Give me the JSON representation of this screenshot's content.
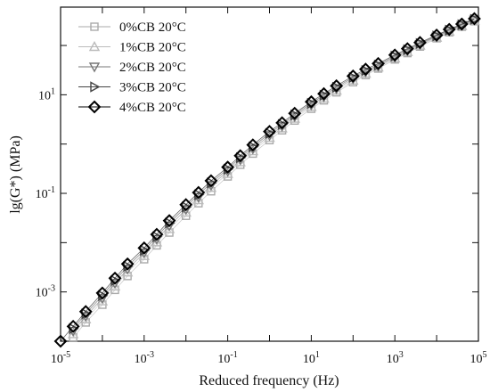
{
  "chart_data": {
    "type": "scatter",
    "title": "",
    "xlabel": "Reduced frequency (Hz)",
    "ylabel": "lg(G*) (MPa)",
    "x_scale": "log",
    "y_scale": "log",
    "xlim": [
      1e-05,
      100000
    ],
    "ylim": [
      0.0001,
      600
    ],
    "x_ticks": [
      {
        "value": 1e-05,
        "base": "10",
        "exp": "-5"
      },
      {
        "value": 0.001,
        "base": "10",
        "exp": "-3"
      },
      {
        "value": 0.1,
        "base": "10",
        "exp": "-1"
      },
      {
        "value": 10,
        "base": "10",
        "exp": "1"
      },
      {
        "value": 1000,
        "base": "10",
        "exp": "3"
      },
      {
        "value": 100000,
        "base": "10",
        "exp": "5"
      }
    ],
    "y_ticks": [
      {
        "value": 0.001,
        "base": "10",
        "exp": "-3"
      },
      {
        "value": 0.1,
        "base": "10",
        "exp": "-1"
      },
      {
        "value": 10,
        "base": "10",
        "exp": "1"
      }
    ],
    "grid": false,
    "legend_position": "top-left",
    "series": [
      {
        "name": "0%CB 20°C",
        "marker": "square",
        "color": "#aaaaaa",
        "x": [
          2e-05,
          4e-05,
          0.0001,
          0.0002,
          0.0004,
          0.001,
          0.002,
          0.004,
          0.01,
          0.02,
          0.04,
          0.1,
          0.2,
          0.4,
          1,
          2,
          4,
          10,
          20,
          40,
          100,
          200,
          400,
          1000,
          2000,
          4000,
          10000,
          20000,
          40000,
          80000
        ],
        "y": [
          0.00012,
          0.00024,
          0.00055,
          0.0011,
          0.0021,
          0.0046,
          0.0088,
          0.016,
          0.035,
          0.063,
          0.11,
          0.22,
          0.38,
          0.64,
          1.2,
          1.9,
          3.0,
          5.2,
          7.7,
          11.2,
          18,
          25,
          34,
          52,
          70,
          95,
          140,
          185,
          240,
          310
        ]
      },
      {
        "name": "1%CB 20°C",
        "marker": "triangle-up",
        "color": "#bbbbbb",
        "x": [
          2e-05,
          4e-05,
          0.0001,
          0.0002,
          0.0004,
          0.001,
          0.002,
          0.004,
          0.01,
          0.02,
          0.04,
          0.1,
          0.2,
          0.4,
          1,
          2,
          4,
          10,
          20,
          40,
          100,
          200,
          400,
          1000,
          2000,
          4000,
          10000,
          20000,
          40000,
          80000
        ],
        "y": [
          0.00014,
          0.00028,
          0.00065,
          0.0013,
          0.0025,
          0.0054,
          0.0102,
          0.019,
          0.041,
          0.073,
          0.13,
          0.25,
          0.43,
          0.72,
          1.35,
          2.1,
          3.3,
          5.7,
          8.4,
          12.2,
          19.5,
          27,
          36,
          55,
          74,
          100,
          145,
          192,
          250,
          320
        ]
      },
      {
        "name": "2%CB 20°C",
        "marker": "triangle-down",
        "color": "#777777",
        "x": [
          2e-05,
          4e-05,
          0.0001,
          0.0002,
          0.0004,
          0.001,
          0.002,
          0.004,
          0.01,
          0.02,
          0.04,
          0.1,
          0.2,
          0.4,
          1,
          2,
          4,
          10,
          20,
          40,
          100,
          200,
          400,
          1000,
          2000,
          4000,
          10000,
          20000,
          40000,
          80000
        ],
        "y": [
          0.00016,
          0.00032,
          0.00074,
          0.0015,
          0.0029,
          0.0062,
          0.0117,
          0.022,
          0.047,
          0.083,
          0.145,
          0.28,
          0.48,
          0.8,
          1.5,
          2.3,
          3.6,
          6.2,
          9.1,
          13.2,
          21,
          29,
          38,
          58,
          78,
          105,
          150,
          198,
          258,
          330
        ]
      },
      {
        "name": "3%CB 20°C",
        "marker": "triangle-right",
        "color": "#444444",
        "x": [
          2e-05,
          4e-05,
          0.0001,
          0.0002,
          0.0004,
          0.001,
          0.002,
          0.004,
          0.01,
          0.02,
          0.04,
          0.1,
          0.2,
          0.4,
          1,
          2,
          4,
          10,
          20,
          40,
          100,
          200,
          400,
          1000,
          2000,
          4000,
          10000,
          20000,
          40000,
          80000
        ],
        "y": [
          0.00018,
          0.00036,
          0.00084,
          0.0017,
          0.0033,
          0.007,
          0.0132,
          0.025,
          0.053,
          0.094,
          0.163,
          0.31,
          0.53,
          0.88,
          1.65,
          2.5,
          3.9,
          6.7,
          9.8,
          14.2,
          22.5,
          31,
          40,
          61,
          82,
          110,
          156,
          205,
          265,
          340
        ]
      },
      {
        "name": "4%CB 20°C",
        "marker": "diamond",
        "color": "#000000",
        "x": [
          1e-05,
          2e-05,
          4e-05,
          0.0001,
          0.0002,
          0.0004,
          0.001,
          0.002,
          0.004,
          0.01,
          0.02,
          0.04,
          0.1,
          0.2,
          0.4,
          1,
          2,
          4,
          10,
          20,
          40,
          100,
          200,
          400,
          1000,
          2000,
          4000,
          10000,
          20000,
          40000,
          80000
        ],
        "y": [
          0.0001,
          0.0002,
          0.0004,
          0.00095,
          0.0019,
          0.0037,
          0.0078,
          0.0147,
          0.028,
          0.059,
          0.104,
          0.18,
          0.34,
          0.58,
          0.96,
          1.8,
          2.7,
          4.2,
          7.2,
          10.5,
          15.2,
          24,
          33,
          43,
          64,
          86,
          115,
          162,
          212,
          272,
          350
        ]
      }
    ]
  }
}
